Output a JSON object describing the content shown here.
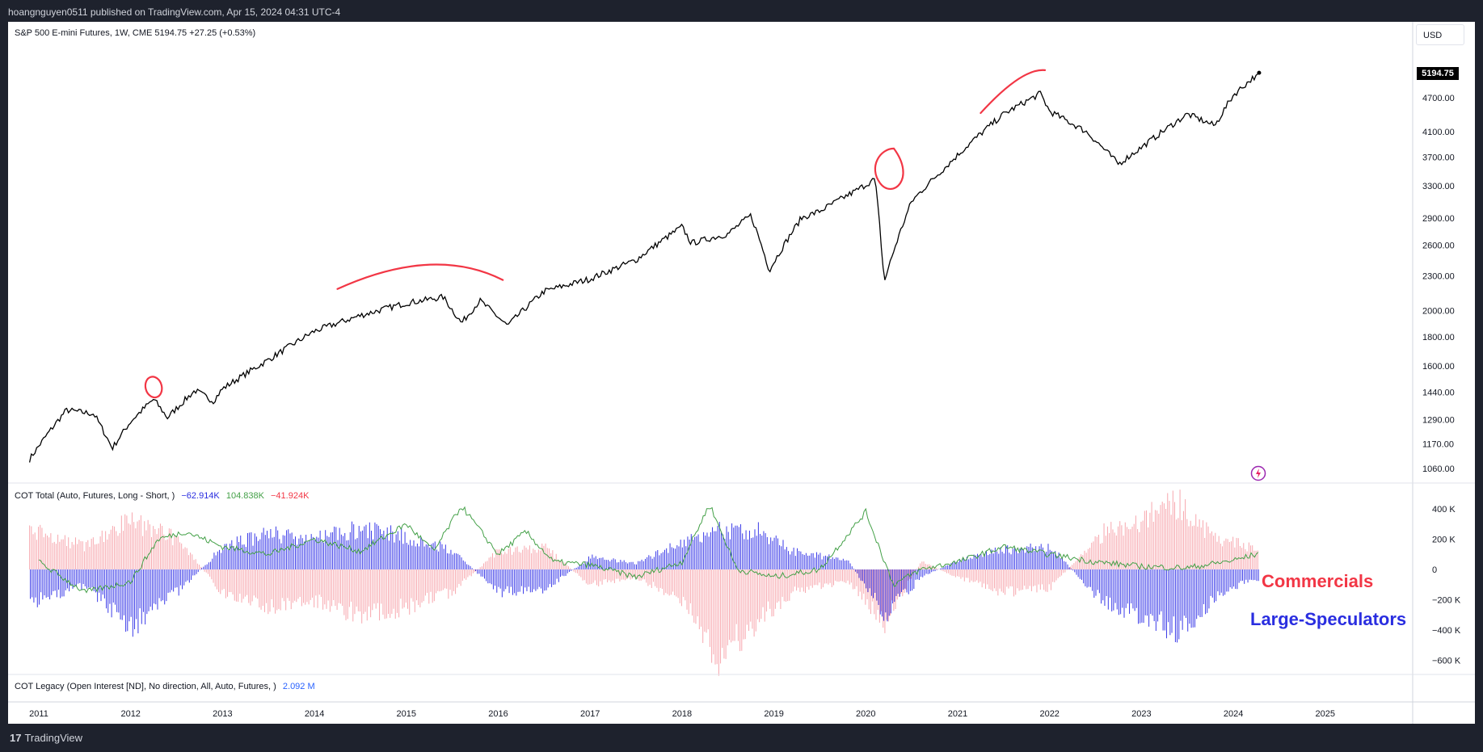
{
  "header": {
    "publish_info": "hoangnguyen0511 published on TradingView.com, Apr 15, 2024 04:31 UTC-4"
  },
  "price_pane": {
    "legend": "S&P 500 E-mini Futures, 1W, CME  5194.75  +27.25 (+0.53%)",
    "currency_button": "USD",
    "last_price": "5194.75",
    "y_ticks": [
      "4700.00",
      "4100.00",
      "3700.00",
      "3300.00",
      "2900.00",
      "2600.00",
      "2300.00",
      "2000.00",
      "1800.00",
      "1600.00",
      "1440.00",
      "1290.00",
      "1170.00",
      "1060.00"
    ]
  },
  "cot_pane": {
    "legend": "COT Total (Auto, Futures, Long - Short, )",
    "v1": "−62.914K",
    "v2": "104.838K",
    "v3": "−41.924K",
    "y_ticks": [
      "400 K",
      "200 K",
      "0",
      "−200 K",
      "−400 K",
      "−600 K"
    ],
    "label_commercials": "Commercials",
    "label_speculators": "Large-Speculators"
  },
  "oi_pane": {
    "legend": "COT Legacy (Open Interest [ND], No direction, All, Auto, Futures, )",
    "value": "2.092 M"
  },
  "x_axis": {
    "ticks": [
      "2011",
      "2012",
      "2013",
      "2014",
      "2015",
      "2016",
      "2017",
      "2018",
      "2019",
      "2020",
      "2021",
      "2022",
      "2023",
      "2024",
      "2025"
    ]
  },
  "footer": {
    "brand": "TradingView"
  },
  "colors": {
    "price_line": "#000000",
    "commercials": "#f23645",
    "speculators": "#2a2ee0",
    "small": "#43a047",
    "annotation": "#f23645"
  },
  "chart_data": {
    "type": "line",
    "title": "S&P 500 E-mini Futures, 1W, CME",
    "y_scale": "log",
    "x": [
      2010.9,
      2011.3,
      2011.6,
      2011.8,
      2012.0,
      2012.25,
      2012.4,
      2012.7,
      2012.9,
      2013.0,
      2013.5,
      2014.0,
      2014.5,
      2015.0,
      2015.4,
      2015.6,
      2015.8,
      2016.1,
      2016.5,
      2017.0,
      2017.5,
      2018.0,
      2018.1,
      2018.5,
      2018.75,
      2018.95,
      2019.3,
      2019.5,
      2019.9,
      2020.1,
      2020.2,
      2020.5,
      2020.9,
      2021.5,
      2021.9,
      2022.0,
      2022.4,
      2022.75,
      2023.0,
      2023.5,
      2023.8,
      2024.0,
      2024.28
    ],
    "y": [
      1100,
      1340,
      1320,
      1150,
      1280,
      1400,
      1300,
      1450,
      1390,
      1460,
      1640,
      1840,
      1960,
      2060,
      2110,
      1900,
      2080,
      1880,
      2160,
      2270,
      2450,
      2800,
      2620,
      2720,
      2930,
      2350,
      2900,
      2980,
      3240,
      3390,
      2240,
      3100,
      3600,
      4400,
      4780,
      4450,
      4100,
      3600,
      3850,
      4400,
      4200,
      4750,
      5195
    ],
    "cot_series": [
      {
        "name": "Commercials",
        "type": "histogram",
        "x": [
          2011.0,
          2011.5,
          2012.0,
          2012.5,
          2013.0,
          2013.5,
          2014.0,
          2014.5,
          2015.0,
          2015.5,
          2016.0,
          2016.5,
          2017.0,
          2017.5,
          2018.0,
          2018.4,
          2018.8,
          2019.2,
          2019.8,
          2020.2,
          2020.6,
          2021.0,
          2021.5,
          2022.0,
          2022.6,
          2023.0,
          2023.4,
          2023.8,
          2024.2
        ],
        "y": [
          250,
          150,
          320,
          200,
          -150,
          -250,
          -200,
          -300,
          -250,
          -150,
          120,
          150,
          -100,
          -50,
          -200,
          -580,
          -350,
          -150,
          -80,
          -350,
          50,
          -50,
          -150,
          -120,
          250,
          330,
          440,
          200,
          150
        ]
      },
      {
        "name": "Large-Speculators",
        "type": "histogram",
        "x": [
          2011.0,
          2011.5,
          2012.0,
          2012.5,
          2013.0,
          2013.5,
          2014.0,
          2014.5,
          2015.0,
          2015.5,
          2016.0,
          2016.5,
          2017.0,
          2017.5,
          2018.0,
          2018.4,
          2018.8,
          2019.2,
          2019.8,
          2020.2,
          2020.6,
          2021.0,
          2021.5,
          2022.0,
          2022.6,
          2023.0,
          2023.4,
          2023.8,
          2024.2
        ],
        "y": [
          -200,
          -100,
          -380,
          -150,
          150,
          240,
          200,
          270,
          220,
          120,
          -150,
          -130,
          80,
          40,
          180,
          260,
          260,
          120,
          60,
          -300,
          -50,
          60,
          130,
          150,
          -230,
          -300,
          -420,
          -180,
          -63
        ]
      },
      {
        "name": "",
        "type": "line",
        "x": [
          2011.0,
          2011.5,
          2012.0,
          2012.3,
          2012.6,
          2013.0,
          2013.5,
          2014.0,
          2014.5,
          2015.0,
          2015.3,
          2015.6,
          2016.0,
          2016.3,
          2016.6,
          2017.0,
          2017.5,
          2018.0,
          2018.3,
          2018.6,
          2019.0,
          2019.5,
          2020.0,
          2020.3,
          2020.6,
          2021.0,
          2021.5,
          2022.0,
          2022.5,
          2023.0,
          2023.5,
          2024.0,
          2024.28
        ],
        "y": [
          50,
          -150,
          -80,
          200,
          250,
          150,
          100,
          200,
          120,
          300,
          120,
          420,
          100,
          250,
          50,
          30,
          -50,
          50,
          430,
          0,
          -50,
          0,
          380,
          -100,
          0,
          50,
          150,
          100,
          50,
          20,
          10,
          60,
          105
        ]
      }
    ],
    "oi_value_millions": 2.092
  }
}
